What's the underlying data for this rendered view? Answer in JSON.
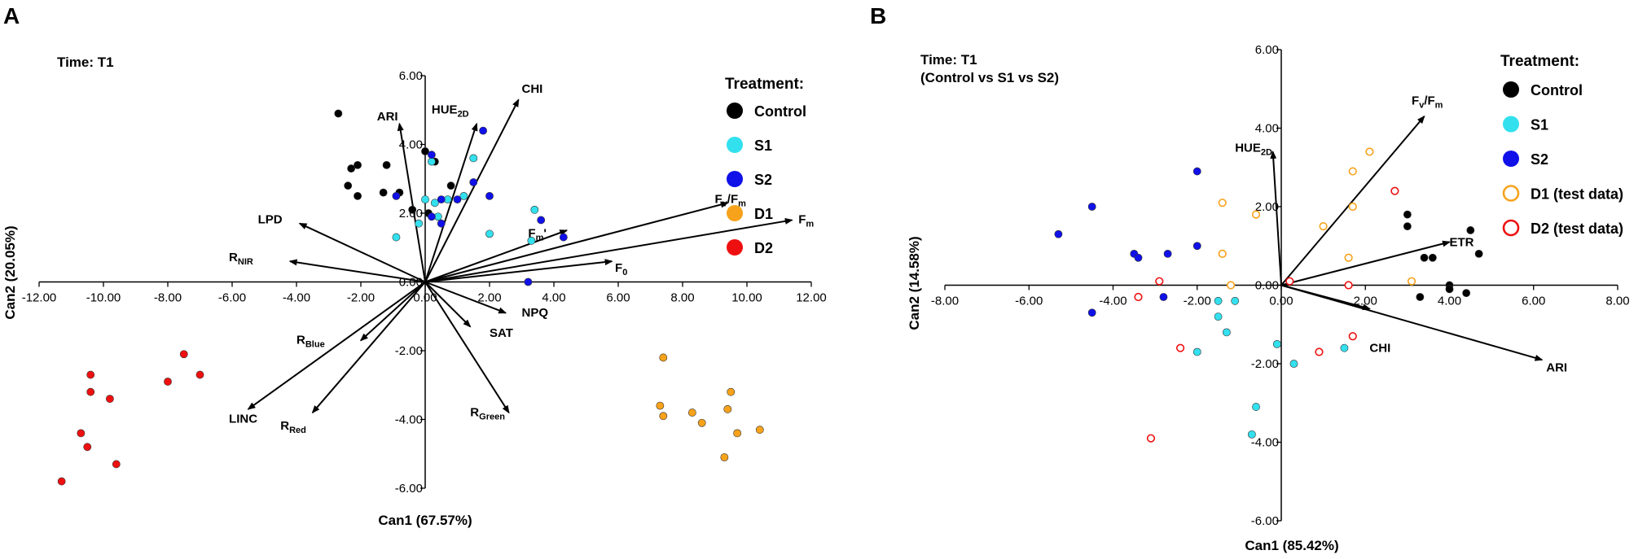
{
  "chart_data": [
    {
      "panel": "A",
      "type": "scatter",
      "title": "Time: T1",
      "xlabel": "Can1 (67.57%)",
      "ylabel": "Can2 (20.05%)",
      "xlim": [
        -12,
        12
      ],
      "ylim": [
        -6,
        6
      ],
      "xticks": [
        "-12.00",
        "-10.00",
        "-8.00",
        "-6.00",
        "-4.00",
        "-2.00",
        "0.00",
        "2.00",
        "4.00",
        "6.00",
        "8.00",
        "10.00",
        "12.00"
      ],
      "yticks": [
        "-6.00",
        "-4.00",
        "-2.00",
        "0.00",
        "2.00",
        "4.00",
        "6.00"
      ],
      "legend": {
        "title": "Treatment:",
        "entries": [
          {
            "label": "Control",
            "color": "#000000",
            "hollow": false
          },
          {
            "label": "S1",
            "color": "#33e0ee",
            "hollow": false
          },
          {
            "label": "S2",
            "color": "#1010e8",
            "hollow": false
          },
          {
            "label": "D1",
            "color": "#f7a21b",
            "hollow": false
          },
          {
            "label": "D2",
            "color": "#ee1010",
            "hollow": false
          }
        ]
      },
      "series": [
        {
          "name": "Control",
          "color": "#000000",
          "hollow": false,
          "points": [
            [
              -2.7,
              4.9
            ],
            [
              -2.1,
              3.4
            ],
            [
              -2.3,
              3.3
            ],
            [
              -1.2,
              3.4
            ],
            [
              -1.3,
              2.6
            ],
            [
              -2.4,
              2.8
            ],
            [
              -2.1,
              2.5
            ],
            [
              -0.8,
              2.6
            ],
            [
              -0.4,
              2.1
            ],
            [
              0.1,
              2.0
            ],
            [
              0.8,
              2.8
            ],
            [
              0.0,
              3.8
            ],
            [
              0.3,
              3.5
            ]
          ]
        },
        {
          "name": "S1",
          "color": "#33e0ee",
          "hollow": false,
          "points": [
            [
              0.2,
              3.5
            ],
            [
              1.5,
              3.6
            ],
            [
              0.3,
              2.3
            ],
            [
              0.0,
              2.4
            ],
            [
              0.7,
              2.4
            ],
            [
              1.2,
              2.5
            ],
            [
              -0.2,
              1.7
            ],
            [
              0.4,
              1.9
            ],
            [
              3.4,
              2.1
            ],
            [
              2.0,
              1.4
            ],
            [
              3.3,
              1.2
            ],
            [
              -0.9,
              1.3
            ]
          ]
        },
        {
          "name": "S2",
          "color": "#1010e8",
          "hollow": false,
          "points": [
            [
              1.8,
              4.4
            ],
            [
              0.2,
              3.7
            ],
            [
              1.5,
              2.9
            ],
            [
              1.0,
              2.4
            ],
            [
              2.0,
              2.5
            ],
            [
              0.5,
              2.4
            ],
            [
              -0.9,
              2.5
            ],
            [
              0.2,
              1.9
            ],
            [
              0.5,
              1.7
            ],
            [
              3.6,
              1.8
            ],
            [
              4.3,
              1.3
            ],
            [
              3.2,
              0.0
            ]
          ]
        },
        {
          "name": "D1",
          "color": "#f7a21b",
          "hollow": false,
          "points": [
            [
              7.4,
              -2.2
            ],
            [
              7.3,
              -3.6
            ],
            [
              7.4,
              -3.9
            ],
            [
              8.3,
              -3.8
            ],
            [
              9.3,
              -5.1
            ],
            [
              9.7,
              -4.4
            ],
            [
              9.4,
              -3.7
            ],
            [
              9.5,
              -3.2
            ],
            [
              10.4,
              -4.3
            ],
            [
              8.6,
              -4.1
            ]
          ]
        },
        {
          "name": "D2",
          "color": "#ee1010",
          "hollow": false,
          "points": [
            [
              -10.4,
              -2.7
            ],
            [
              -10.4,
              -3.2
            ],
            [
              -9.8,
              -3.4
            ],
            [
              -10.7,
              -4.4
            ],
            [
              -10.5,
              -4.8
            ],
            [
              -9.6,
              -5.3
            ],
            [
              -11.3,
              -5.8
            ],
            [
              -7.5,
              -2.1
            ],
            [
              -8.0,
              -2.9
            ],
            [
              -7.0,
              -2.7
            ]
          ]
        }
      ],
      "vectors": [
        {
          "label": "CHI",
          "sub": "",
          "x": 2.9,
          "y": 5.3,
          "tx": 3.0,
          "ty": 5.5
        },
        {
          "label": "HUE",
          "sub": "2D",
          "x": 1.6,
          "y": 4.6,
          "tx": 0.2,
          "ty": 4.9
        },
        {
          "label": "ARI",
          "sub": "",
          "x": -0.8,
          "y": 4.6,
          "tx": -1.5,
          "ty": 4.7
        },
        {
          "label": "F",
          "sub": "v",
          "label2": "/F",
          "sub2": "m",
          "x": 9.4,
          "y": 2.3,
          "tx": 9.0,
          "ty": 2.3
        },
        {
          "label": "F",
          "sub": "m",
          "x": 11.4,
          "y": 1.8,
          "tx": 11.6,
          "ty": 1.7
        },
        {
          "label": "F",
          "sub": "m",
          "label2": "'",
          "x": 4.4,
          "y": 1.5,
          "tx": 3.2,
          "ty": 1.3
        },
        {
          "label": "F",
          "sub": "0",
          "x": 5.8,
          "y": 0.6,
          "tx": 5.9,
          "ty": 0.3
        },
        {
          "label": "LPD",
          "sub": "",
          "x": -3.9,
          "y": 1.7,
          "tx": -5.2,
          "ty": 1.7
        },
        {
          "label": "R",
          "sub": "NIR",
          "x": -4.2,
          "y": 0.6,
          "tx": -6.1,
          "ty": 0.6
        },
        {
          "label": "NPQ",
          "sub": "",
          "x": 2.5,
          "y": -0.9,
          "tx": 3.0,
          "ty": -1.0
        },
        {
          "label": "SAT",
          "sub": "",
          "x": 1.4,
          "y": -1.3,
          "tx": 2.0,
          "ty": -1.6
        },
        {
          "label": "R",
          "sub": "Blue",
          "x": -2.0,
          "y": -1.7,
          "tx": -4.0,
          "ty": -1.8
        },
        {
          "label": "LINC",
          "sub": "",
          "x": -5.5,
          "y": -3.7,
          "tx": -6.1,
          "ty": -4.1
        },
        {
          "label": "R",
          "sub": "Red",
          "x": -3.5,
          "y": -3.8,
          "tx": -4.5,
          "ty": -4.3
        },
        {
          "label": "R",
          "sub": "Green",
          "x": 2.6,
          "y": -3.8,
          "tx": 1.4,
          "ty": -3.9
        }
      ]
    },
    {
      "panel": "B",
      "type": "scatter",
      "title": "Time: T1",
      "subtitle": "(Control vs S1 vs S2)",
      "xlabel": "Can1 (85.42%)",
      "ylabel": "Can2 (14.58%)",
      "xlim": [
        -8,
        8
      ],
      "ylim": [
        -6,
        6
      ],
      "xticks": [
        "-8.00",
        "-6.00",
        "-4.00",
        "-2.00",
        "0.00",
        "2.00",
        "4.00",
        "6.00",
        "8.00"
      ],
      "yticks": [
        "-6.00",
        "-4.00",
        "-2.00",
        "0.00",
        "2.00",
        "4.00",
        "6.00"
      ],
      "legend": {
        "title": "Treatment:",
        "entries": [
          {
            "label": "Control",
            "color": "#000000",
            "hollow": false
          },
          {
            "label": "S1",
            "color": "#33e0ee",
            "hollow": false
          },
          {
            "label": "S2",
            "color": "#1010e8",
            "hollow": false
          },
          {
            "label": "D1 (test data)",
            "color": "#f7a21b",
            "hollow": true
          },
          {
            "label": "D2 (test data)",
            "color": "#ee1010",
            "hollow": true
          }
        ]
      },
      "series": [
        {
          "name": "Control",
          "color": "#000000",
          "hollow": false,
          "points": [
            [
              3.0,
              1.8
            ],
            [
              3.0,
              1.5
            ],
            [
              4.5,
              1.4
            ],
            [
              3.6,
              0.7
            ],
            [
              3.4,
              0.7
            ],
            [
              4.7,
              0.8
            ],
            [
              4.0,
              0.0
            ],
            [
              4.0,
              -0.1
            ],
            [
              4.4,
              -0.2
            ],
            [
              3.3,
              -0.3
            ]
          ]
        },
        {
          "name": "S1",
          "color": "#33e0ee",
          "hollow": false,
          "points": [
            [
              -1.5,
              -0.4
            ],
            [
              -1.1,
              -0.4
            ],
            [
              -1.5,
              -0.8
            ],
            [
              -1.3,
              -1.2
            ],
            [
              -2.0,
              -1.7
            ],
            [
              -0.1,
              -1.5
            ],
            [
              0.3,
              -2.0
            ],
            [
              1.5,
              -1.6
            ],
            [
              -0.6,
              -3.1
            ],
            [
              -0.7,
              -3.8
            ]
          ]
        },
        {
          "name": "S2",
          "color": "#1010e8",
          "hollow": false,
          "points": [
            [
              -2.0,
              2.9
            ],
            [
              -4.5,
              2.0
            ],
            [
              -5.3,
              1.3
            ],
            [
              -3.5,
              0.8
            ],
            [
              -2.7,
              0.8
            ],
            [
              -2.0,
              1.0
            ],
            [
              -3.4,
              0.7
            ],
            [
              -2.8,
              -0.3
            ],
            [
              -4.5,
              -0.7
            ]
          ]
        },
        {
          "name": "D1",
          "color": "#f7a21b",
          "hollow": true,
          "points": [
            [
              2.1,
              3.4
            ],
            [
              1.7,
              2.9
            ],
            [
              -1.4,
              2.1
            ],
            [
              1.7,
              2.0
            ],
            [
              -0.6,
              1.8
            ],
            [
              1.0,
              1.5
            ],
            [
              -1.4,
              0.8
            ],
            [
              1.6,
              0.7
            ],
            [
              -1.2,
              0.0
            ],
            [
              3.1,
              0.1
            ]
          ]
        },
        {
          "name": "D2",
          "color": "#ee1010",
          "hollow": true,
          "points": [
            [
              2.7,
              2.4
            ],
            [
              -2.9,
              0.1
            ],
            [
              0.2,
              0.1
            ],
            [
              1.6,
              0.0
            ],
            [
              -3.4,
              -0.3
            ],
            [
              -2.4,
              -1.6
            ],
            [
              0.9,
              -1.7
            ],
            [
              1.7,
              -1.3
            ],
            [
              -3.1,
              -3.9
            ]
          ]
        }
      ],
      "vectors": [
        {
          "label": "F",
          "sub": "v",
          "label2": "/F",
          "sub2": "m",
          "x": 3.4,
          "y": 4.3,
          "tx": 3.1,
          "ty": 4.6
        },
        {
          "label": "HUE",
          "sub": "2D",
          "x": -0.2,
          "y": 3.4,
          "tx": -1.1,
          "ty": 3.4
        },
        {
          "label": "ETR",
          "sub": "",
          "x": 4.0,
          "y": 1.1,
          "tx": 4.0,
          "ty": 1.0
        },
        {
          "label": "CHI",
          "sub": "",
          "x": 2.1,
          "y": -0.6,
          "tx": 2.1,
          "ty": -1.7
        },
        {
          "label": "ARI",
          "sub": "",
          "x": 6.2,
          "y": -1.9,
          "tx": 6.3,
          "ty": -2.2
        }
      ]
    }
  ]
}
